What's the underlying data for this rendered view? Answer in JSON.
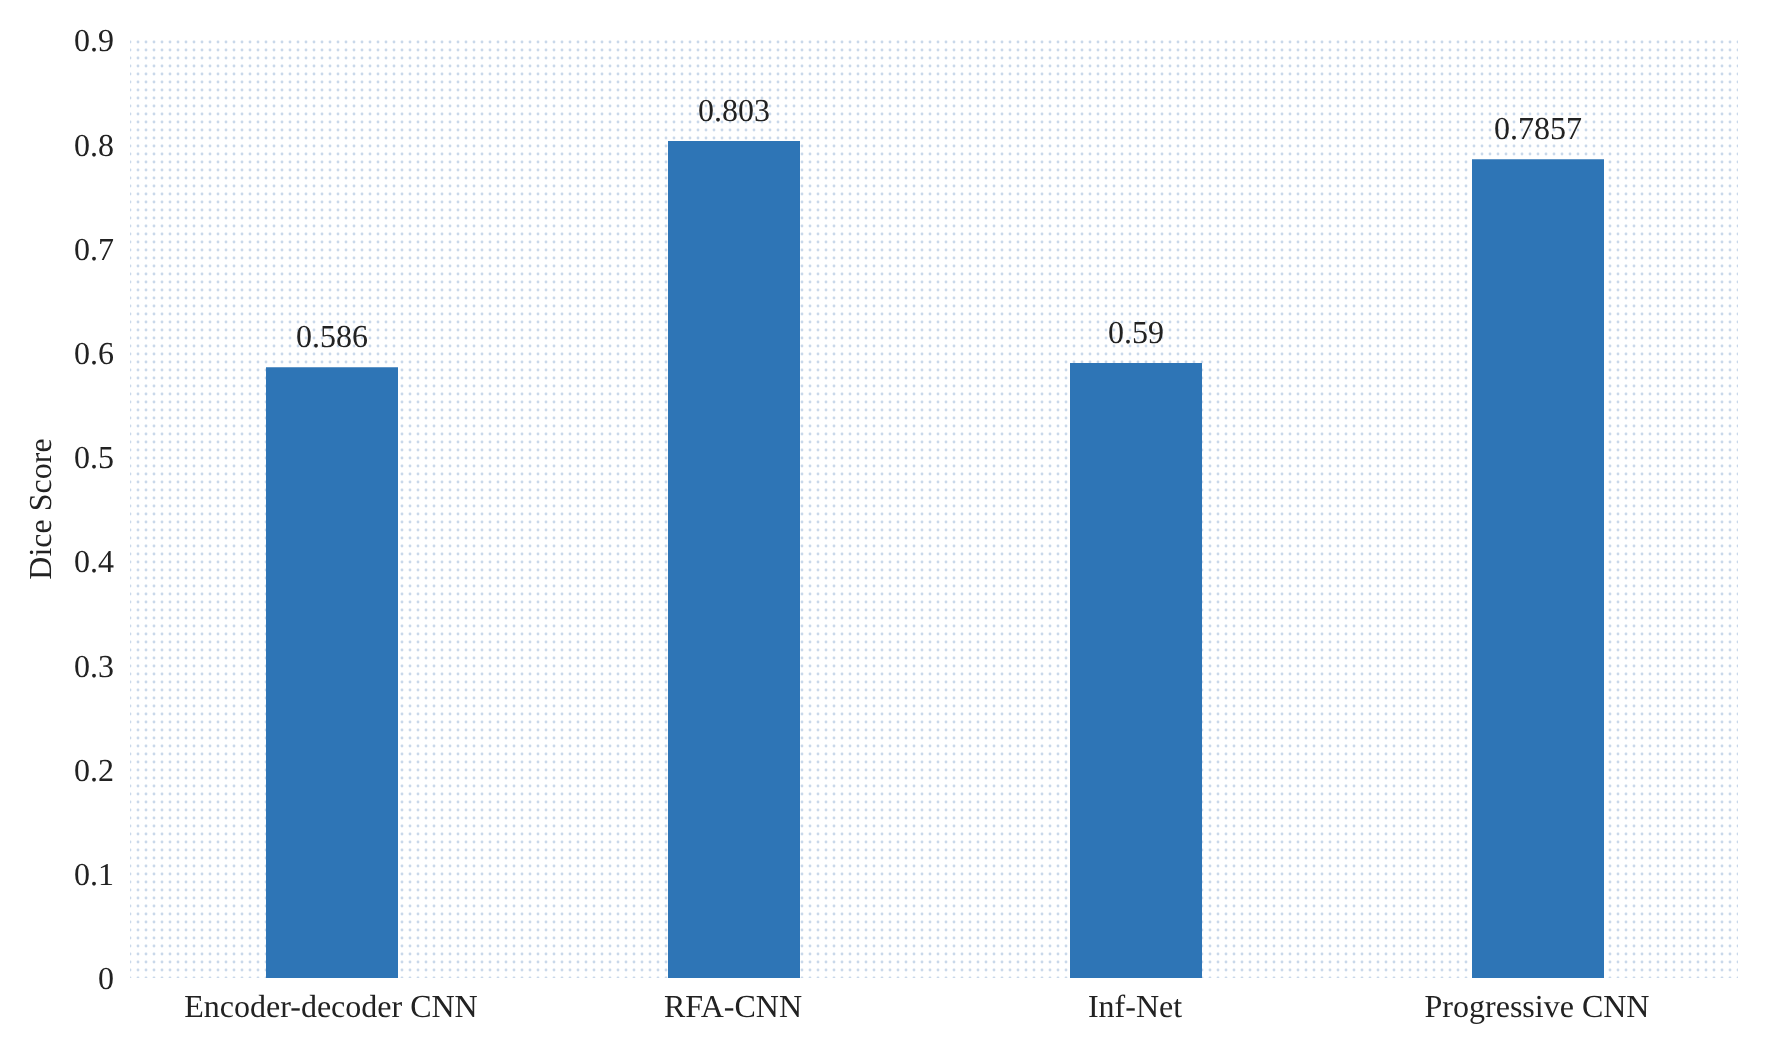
{
  "chart_data": {
    "type": "bar",
    "ylabel": "Dice Score",
    "categories": [
      "Encoder-decoder CNN",
      "RFA-CNN",
      "Inf-Net",
      "Progressive CNN"
    ],
    "values": [
      0.586,
      0.803,
      0.59,
      0.7857
    ],
    "color": "#2e75b6",
    "ylim": [
      0,
      0.9
    ],
    "yticks": [
      0,
      0.1,
      0.2,
      0.3,
      0.4,
      0.5,
      0.6,
      0.7,
      0.8,
      0.9
    ],
    "data_labels": true,
    "grid": false,
    "legend": false
  }
}
